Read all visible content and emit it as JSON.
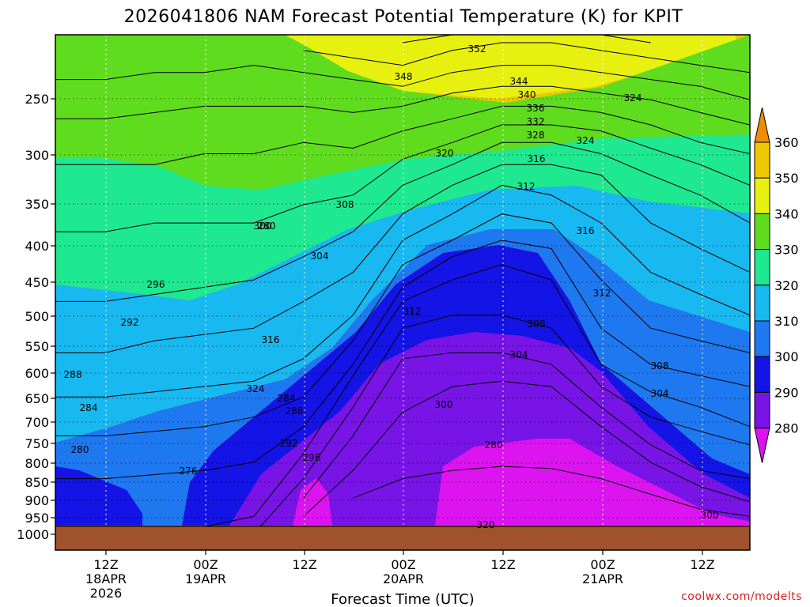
{
  "chart_data": {
    "type": "contour",
    "title": "2026041806 NAM Forecast Potential Temperature (K) for KPIT",
    "xlabel": "Forecast Time (UTC)",
    "ylabel": "",
    "y_scale": "log-pressure",
    "y_ticks": [
      "250",
      "300",
      "350",
      "400",
      "450",
      "500",
      "550",
      "600",
      "650",
      "700",
      "750",
      "800",
      "850",
      "900",
      "950",
      "1000"
    ],
    "x_ticks": [
      {
        "label": "12Z",
        "sub": [
          "18APR",
          "2026"
        ]
      },
      {
        "label": "00Z",
        "sub": [
          "19APR"
        ]
      },
      {
        "label": "12Z",
        "sub": []
      },
      {
        "label": "00Z",
        "sub": [
          "20APR"
        ]
      },
      {
        "label": "12Z",
        "sub": []
      },
      {
        "label": "00Z",
        "sub": [
          "21APR"
        ]
      },
      {
        "label": "12Z",
        "sub": []
      }
    ],
    "colorbar": {
      "ticks": [
        "360",
        "350",
        "340",
        "330",
        "320",
        "310",
        "300",
        "290",
        "280"
      ],
      "colors": [
        "#f08c00",
        "#f0c800",
        "#e8f010",
        "#60dc1e",
        "#1ee890",
        "#18b8f0",
        "#1e78f0",
        "#1414e6",
        "#7814e6",
        "#dc14f0"
      ]
    },
    "contour_labels": [
      "352",
      "348",
      "344",
      "340",
      "336",
      "332",
      "328",
      "324",
      "320",
      "316",
      "312",
      "308",
      "304",
      "300",
      "296",
      "292",
      "288",
      "284",
      "280",
      "276",
      "324",
      "316",
      "312",
      "308",
      "304",
      "300",
      "296",
      "292",
      "288",
      "284",
      "280",
      "320",
      "324",
      "316",
      "312",
      "308",
      "304",
      "300",
      "280"
    ],
    "profile_hours": [
      0,
      6,
      12,
      18,
      24,
      30,
      36,
      42,
      48,
      54,
      60,
      66,
      72,
      78,
      84
    ],
    "isentrope_pressures": {
      "280": [
        null,
        null,
        null,
        null,
        null,
        null,
        null,
        null,
        null,
        null,
        null,
        null,
        null,
        null,
        null
      ],
      "284": [
        null,
        null,
        null,
        null,
        null,
        null,
        850,
        800,
        780,
        770,
        775,
        800,
        840,
        880,
        900
      ],
      "288": [
        null,
        null,
        null,
        null,
        null,
        900,
        780,
        650,
        600,
        590,
        600,
        680,
        760,
        820,
        860
      ],
      "292": [
        null,
        null,
        null,
        null,
        null,
        850,
        700,
        550,
        540,
        540,
        560,
        640,
        720,
        780,
        800
      ],
      "296": [
        null,
        null,
        null,
        null,
        950,
        800,
        640,
        500,
        480,
        480,
        500,
        600,
        660,
        690,
        720
      ],
      "300": [
        940,
        940,
        935,
        930,
        900,
        740,
        580,
        460,
        430,
        410,
        430,
        560,
        610,
        640,
        680
      ],
      "304": [
        800,
        800,
        790,
        780,
        760,
        680,
        560,
        440,
        400,
        380,
        390,
        500,
        560,
        580,
        600
      ],
      "308": [
        700,
        700,
        690,
        680,
        660,
        620,
        520,
        410,
        380,
        350,
        360,
        430,
        500,
        520,
        540
      ],
      "312": [
        620,
        620,
        610,
        600,
        590,
        550,
        480,
        380,
        350,
        320,
        330,
        360,
        420,
        450,
        480
      ],
      "316": [
        540,
        540,
        520,
        510,
        500,
        460,
        420,
        350,
        320,
        300,
        300,
        310,
        360,
        390,
        420
      ],
      "320": [
        460,
        460,
        450,
        440,
        430,
        400,
        370,
        320,
        300,
        280,
        280,
        290,
        310,
        330,
        360
      ],
      "324": [
        370,
        370,
        360,
        360,
        360,
        340,
        330,
        295,
        280,
        265,
        265,
        270,
        285,
        300,
        320
      ],
      "328": [
        300,
        300,
        300,
        290,
        290,
        280,
        285,
        270,
        260,
        250,
        250,
        255,
        265,
        280,
        290
      ],
      "332": [
        260,
        260,
        255,
        250,
        250,
        250,
        255,
        250,
        240,
        235,
        235,
        240,
        245,
        255,
        265
      ],
      "336": [
        230,
        230,
        225,
        225,
        220,
        225,
        230,
        235,
        225,
        220,
        220,
        225,
        230,
        235,
        245
      ],
      "340": [
        null,
        null,
        null,
        null,
        null,
        210,
        215,
        220,
        210,
        205,
        205,
        210,
        215,
        220,
        225
      ],
      "344": [
        null,
        null,
        null,
        null,
        null,
        null,
        null,
        205,
        200,
        195,
        195,
        200,
        205,
        null,
        null
      ],
      "348": [
        null,
        null,
        null,
        null,
        null,
        null,
        null,
        null,
        null,
        188,
        188,
        192,
        null,
        null,
        null
      ],
      "352": [
        null,
        null,
        null,
        null,
        null,
        null,
        null,
        null,
        null,
        null,
        null,
        null,
        null,
        null,
        null
      ]
    }
  },
  "credit": "coolwx.com/modelts"
}
